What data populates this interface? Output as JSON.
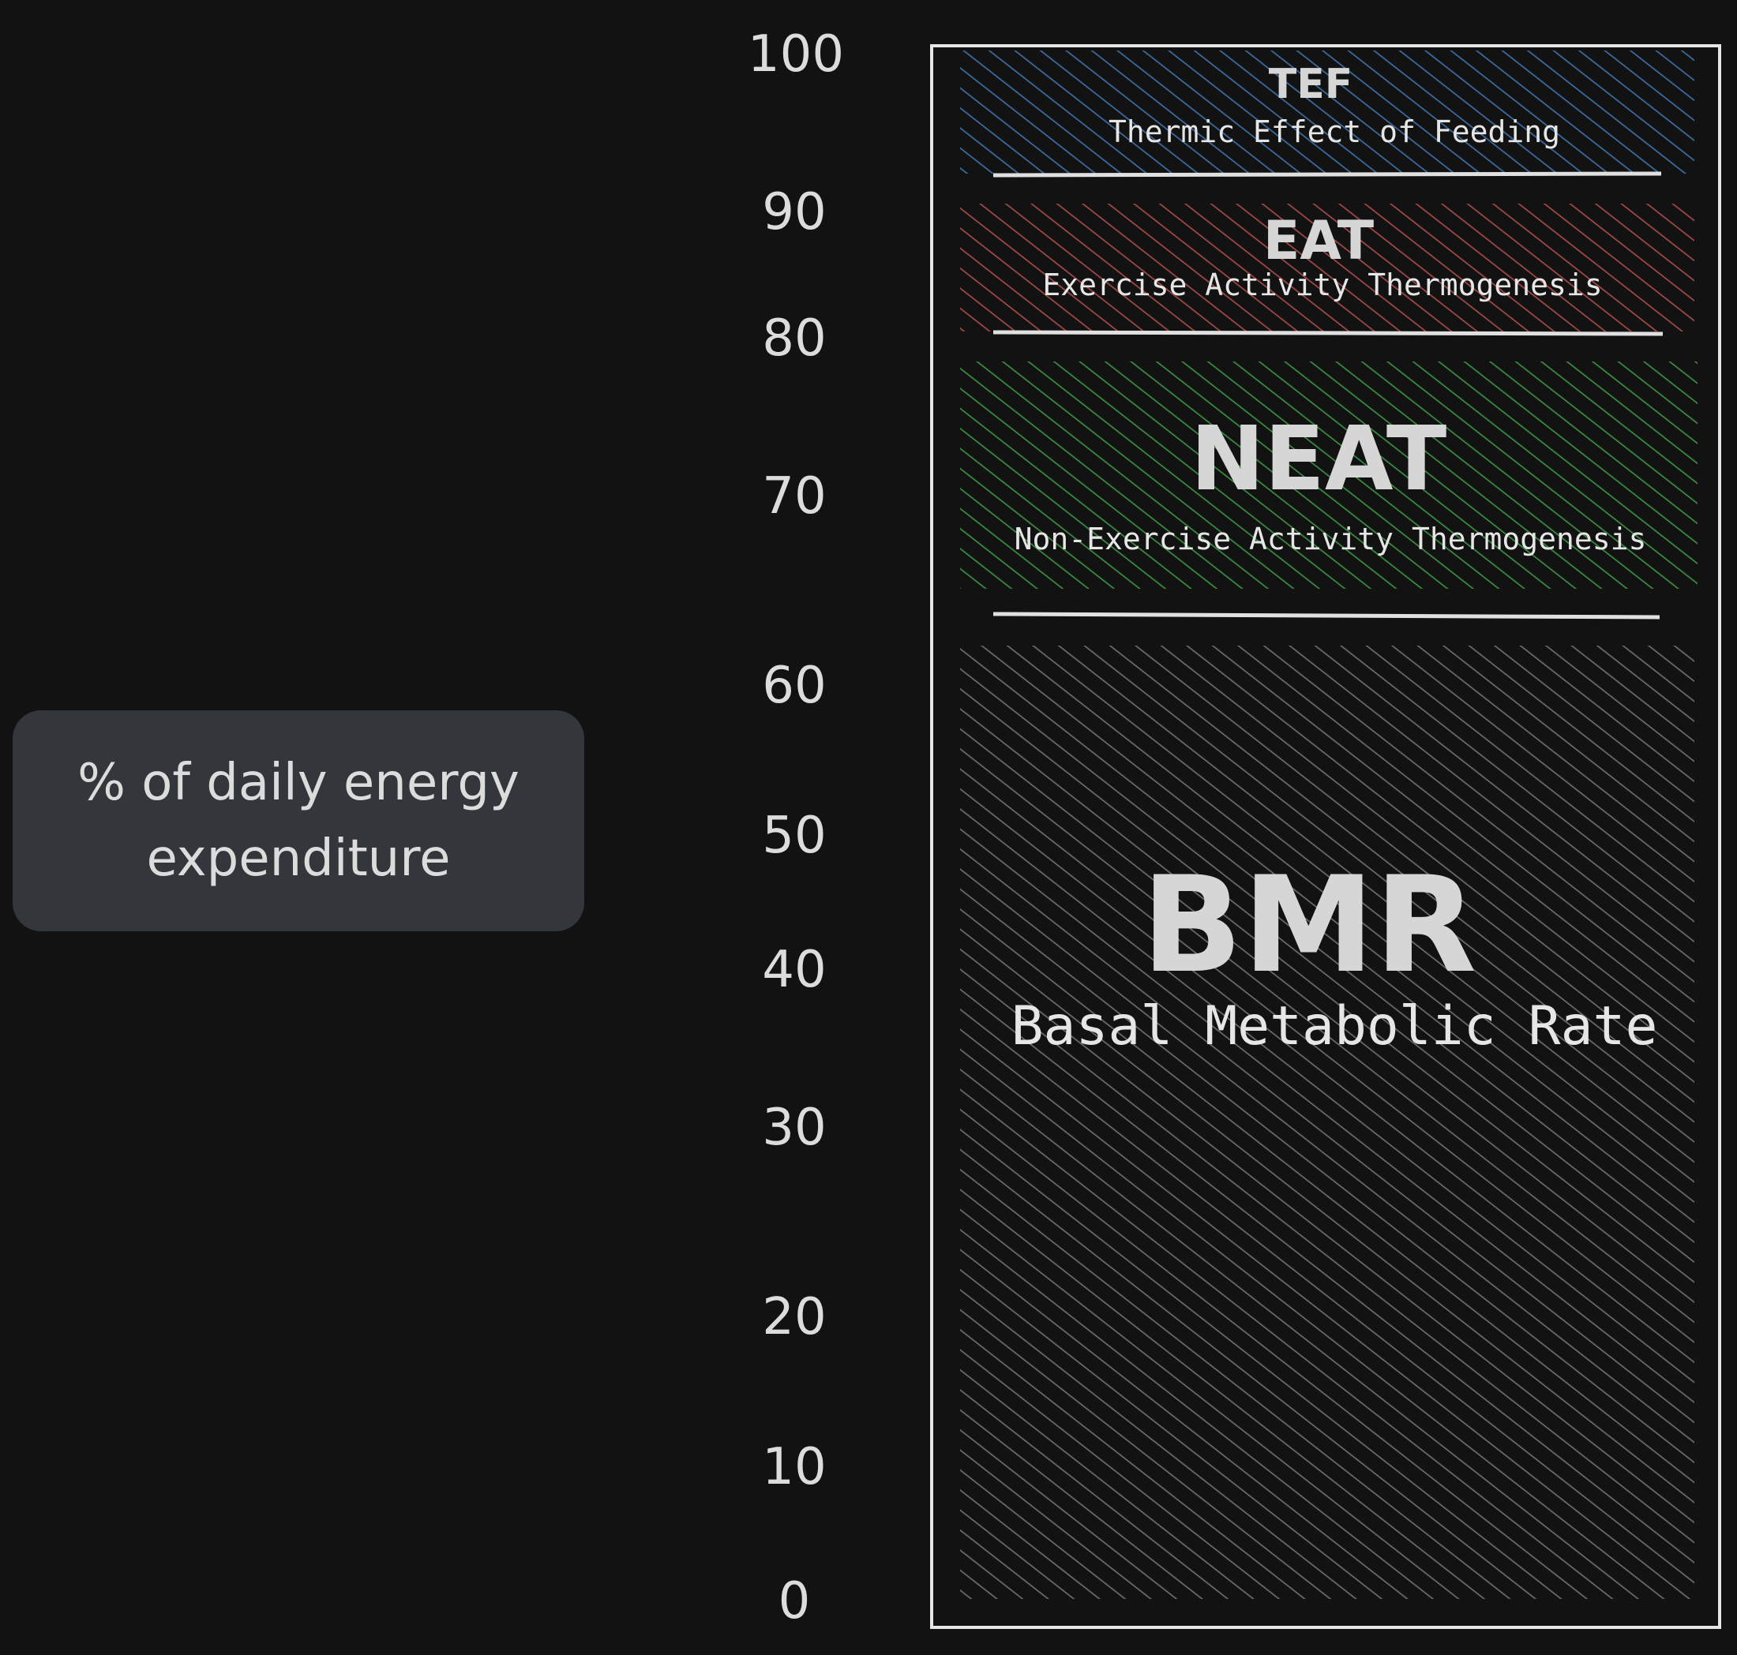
{
  "axis": {
    "label": "% of daily energy expenditure",
    "ticks": [
      0,
      10,
      20,
      30,
      40,
      50,
      60,
      70,
      80,
      90,
      100
    ]
  },
  "segments": [
    {
      "id": "tef",
      "abbr": "TEF",
      "name": "Thermic Effect of Feeding",
      "color": "#3b6c9e"
    },
    {
      "id": "eat",
      "abbr": "EAT",
      "name": "Exercise Activity Thermogenesis",
      "color": "#a04848"
    },
    {
      "id": "neat",
      "abbr": "NEAT",
      "name": "Non-Exercise Activity Thermogenesis",
      "color": "#3a8a42"
    },
    {
      "id": "bmr",
      "abbr": "BMR",
      "name": "Basal Metabolic Rate",
      "color": "#6a6a6a"
    }
  ]
}
